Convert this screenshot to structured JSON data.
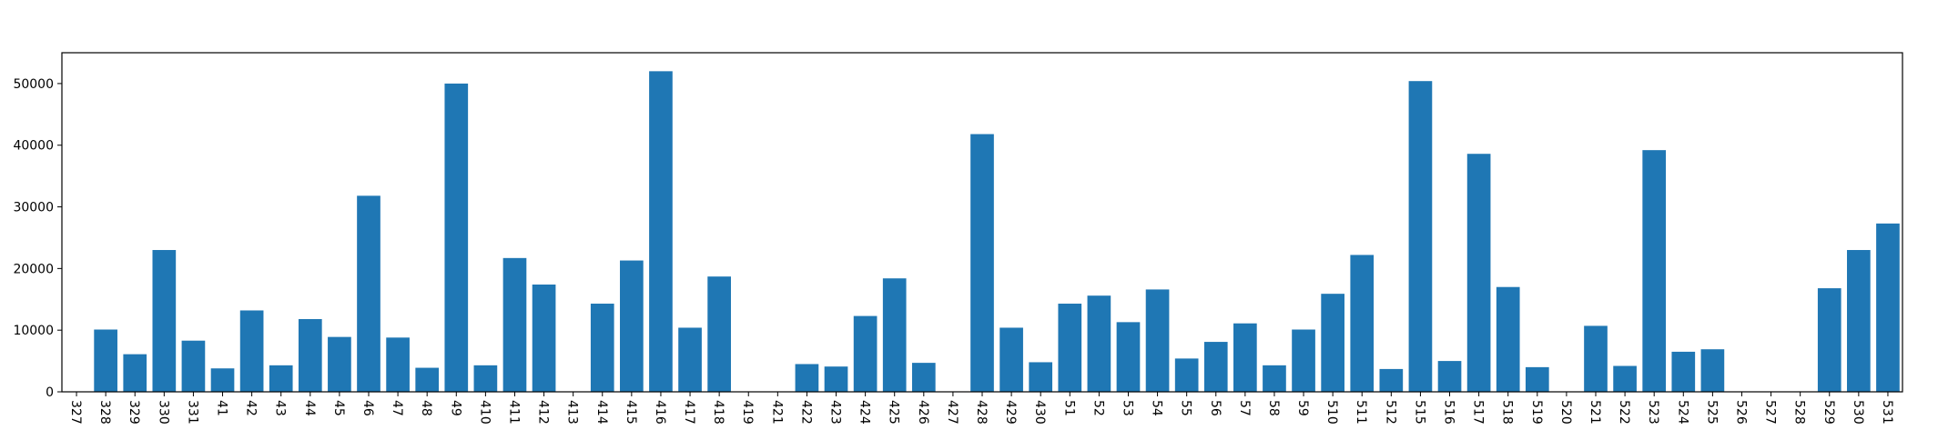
{
  "chart_data": {
    "type": "bar",
    "title": "",
    "xlabel": "",
    "ylabel": "",
    "ylim": [
      0,
      55000
    ],
    "grid": false,
    "legend": "none",
    "bar_color": "#1f77b4",
    "x_tick_rotation": "vertical",
    "y_ticks": [
      0,
      10000,
      20000,
      30000,
      40000,
      50000
    ],
    "y_tick_labels": [
      "0",
      "10000",
      "20000",
      "30000",
      "40000",
      "50000"
    ],
    "categories": [
      "327",
      "328",
      "329",
      "330",
      "331",
      "41",
      "42",
      "43",
      "44",
      "45",
      "46",
      "47",
      "48",
      "49",
      "410",
      "411",
      "412",
      "413",
      "414",
      "415",
      "416",
      "417",
      "418",
      "419",
      "421",
      "422",
      "423",
      "424",
      "425",
      "426",
      "427",
      "428",
      "429",
      "430",
      "51",
      "52",
      "53",
      "54",
      "55",
      "56",
      "57",
      "58",
      "59",
      "510",
      "511",
      "512",
      "515",
      "516",
      "517",
      "518",
      "519",
      "520",
      "521",
      "522",
      "523",
      "524",
      "525",
      "526",
      "527",
      "528",
      "529",
      "530",
      "531"
    ],
    "values": [
      0,
      10100,
      6100,
      23000,
      8300,
      3800,
      13200,
      4300,
      11800,
      8900,
      31800,
      8800,
      3900,
      50000,
      4300,
      21700,
      17400,
      0,
      14300,
      21300,
      52000,
      10400,
      18700,
      0,
      0,
      4500,
      4100,
      12300,
      18400,
      4700,
      0,
      41800,
      10400,
      4800,
      14300,
      15600,
      11300,
      16600,
      5400,
      8100,
      11100,
      4300,
      10100,
      15900,
      22200,
      3700,
      50400,
      5000,
      38600,
      17000,
      4000,
      0,
      10700,
      4200,
      39200,
      6500,
      6900,
      0,
      0,
      0,
      16800,
      23000,
      27300
    ]
  }
}
